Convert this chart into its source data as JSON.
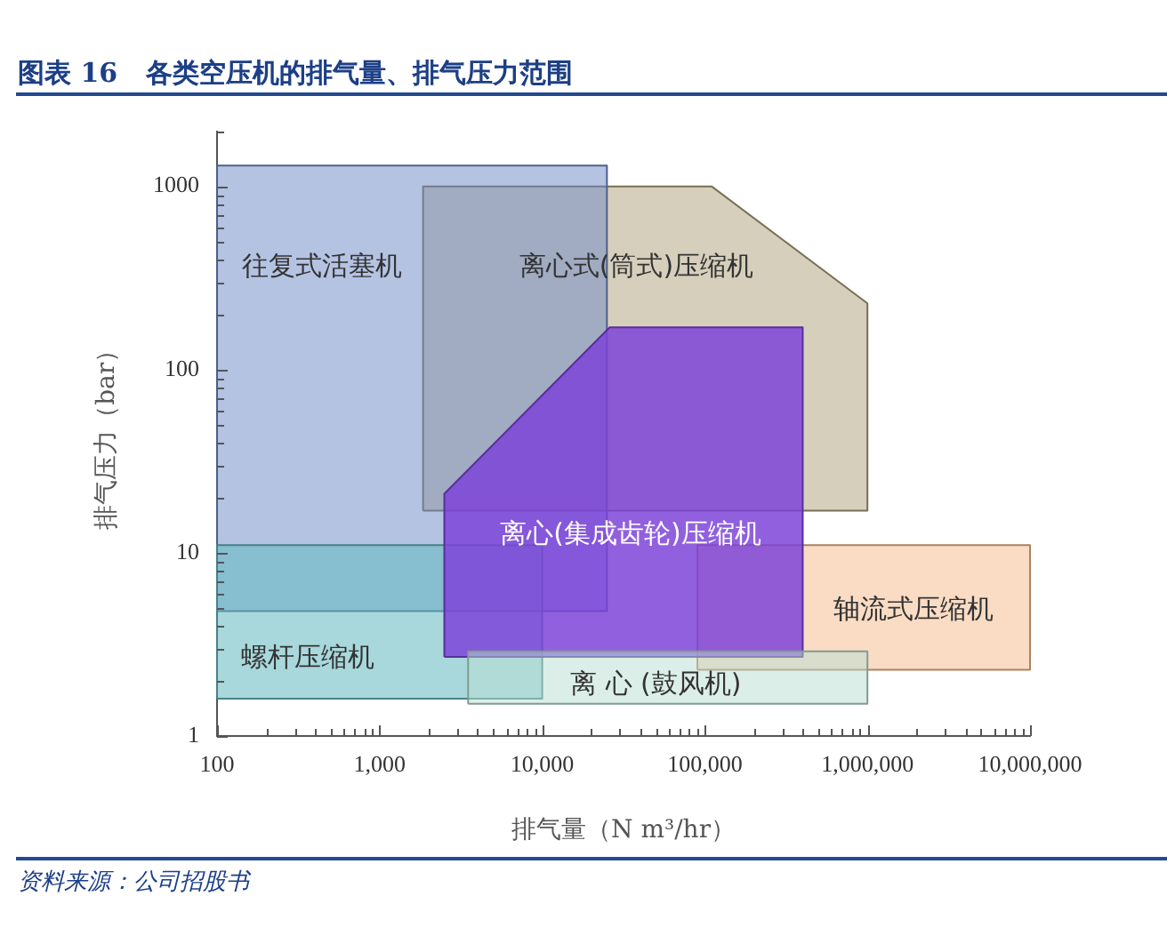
{
  "chart_data": {
    "type": "area",
    "title": "图表 16   各类空压机的排气量、排气压力范围",
    "xlabel": "排气量（N m³/hr）",
    "ylabel": "排气压力（bar）",
    "annotations": [
      "资料来源：公司招股书"
    ],
    "log": "xy",
    "legend": false,
    "xlim": [
      100,
      10000000
    ],
    "ylim": [
      1,
      2000
    ],
    "xticks": [
      100,
      {
        "value": 1000,
        "label": "1,000"
      },
      {
        "value": 10000,
        "label": "10,000"
      },
      {
        "value": 100000,
        "label": "100,000"
      },
      {
        "value": 1000000,
        "label": "1,000,000"
      },
      {
        "value": 10000000,
        "label": "10,000,000"
      }
    ],
    "yticks": [
      1,
      10,
      100,
      1000
    ],
    "series": [
      {
        "name": "离心式(筒式)压缩机",
        "color": "#d6cfbc",
        "x": [
          1850,
          1850,
          110000,
          1000000,
          1000000
        ],
        "values": [
          17,
          1000,
          1000,
          230,
          17
        ]
      },
      {
        "name": "往复式活塞机",
        "color": "#b5c3e3",
        "x": [
          100,
          100,
          25000,
          25000
        ],
        "values": [
          4.8,
          1300,
          1300,
          4.8
        ]
      },
      {
        "name": "螺杆压缩机",
        "color": "#a8d8dc",
        "x": [
          100,
          100,
          10000,
          10000
        ],
        "values": [
          1.6,
          11,
          11,
          1.6
        ]
      },
      {
        "name": "轴流式压缩机",
        "color": "#fadcc4",
        "x": [
          90000,
          90000,
          10000000,
          10000000
        ],
        "values": [
          2.3,
          11,
          11,
          2.3
        ]
      },
      {
        "name": "离心(集成齿轮)压缩机",
        "color": "#9160de",
        "x": [
          2500,
          2500,
          26000,
          400000,
          400000
        ],
        "values": [
          2.7,
          21,
          170,
          170,
          2.7
        ]
      },
      {
        "name": "离 心 (鼓风机)",
        "color": "#dbeee8",
        "x": [
          3500,
          3500,
          1000000,
          1000000
        ],
        "values": [
          1.5,
          2.9,
          2.9,
          1.5
        ]
      }
    ]
  }
}
